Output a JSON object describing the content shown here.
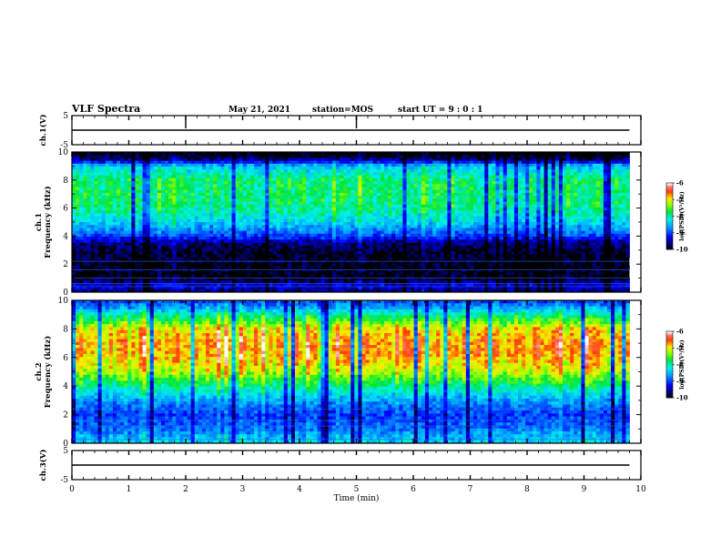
{
  "header": {
    "title": "VLF Spectra",
    "date": "May 21, 2021",
    "station": "station=MOS",
    "start": "start UT =  9 : 0 : 1"
  },
  "chart_data": [
    {
      "type": "line",
      "panel": "ch1-waveform",
      "ylabel": "ch.1(V)",
      "xlim": [
        0,
        10
      ],
      "ylim": [
        -5,
        5
      ],
      "yticks": [
        -5,
        5
      ],
      "series": [
        {
          "x": [
            0,
            9.8
          ],
          "y": [
            0,
            0
          ]
        }
      ]
    },
    {
      "type": "heatmap",
      "panel": "ch1-spectrogram",
      "ylabel": "ch.1\nFrequency (kHz)",
      "xlim": [
        0,
        10
      ],
      "ylim": [
        0,
        10
      ],
      "yticks": [
        0,
        2,
        4,
        6,
        8,
        10
      ],
      "data_end_min": 9.8,
      "colorbar": {
        "label": "log(PSD)(V²/Hz)",
        "range": [
          -10,
          -6
        ],
        "ticks": [
          -6,
          -7,
          -8,
          -9,
          -10
        ]
      },
      "profile": {
        "freq_khz": [
          0,
          0.5,
          1,
          2,
          3,
          3.5,
          4,
          5,
          6,
          7,
          8,
          9,
          9.3,
          9.6,
          10
        ],
        "log_psd": [
          -9.6,
          -9.3,
          -9.9,
          -9.9,
          -9.8,
          -9.6,
          -9.0,
          -8.3,
          -7.9,
          -7.8,
          -7.8,
          -8.4,
          -9.2,
          -9.8,
          -10
        ]
      }
    },
    {
      "type": "heatmap",
      "panel": "ch2-spectrogram",
      "ylabel": "ch.2\nFrequency (kHz)",
      "xlim": [
        0,
        10
      ],
      "ylim": [
        0,
        10
      ],
      "yticks": [
        0,
        2,
        4,
        6,
        8,
        10
      ],
      "data_end_min": 9.8,
      "colorbar": {
        "label": "log(PSD)(V²/Hz)",
        "range": [
          -10,
          -6
        ],
        "ticks": [
          -6,
          -7,
          -8,
          -9,
          -10
        ]
      },
      "profile": {
        "freq_khz": [
          0,
          0.5,
          1,
          2,
          3,
          4,
          5,
          6,
          7,
          8,
          8.5,
          9,
          9.5,
          10
        ],
        "log_psd": [
          -8.3,
          -8.5,
          -8.8,
          -9.0,
          -8.6,
          -7.9,
          -7.2,
          -6.8,
          -6.7,
          -7.0,
          -7.5,
          -8.0,
          -8.6,
          -9.0
        ]
      }
    },
    {
      "type": "line",
      "panel": "ch3-waveform",
      "ylabel": "ch.3(V)",
      "xlabel": "Time  (min)",
      "xlim": [
        0,
        10
      ],
      "ylim": [
        -5,
        5
      ],
      "yticks": [
        -5,
        5
      ],
      "xticks": [
        0,
        1,
        2,
        3,
        4,
        5,
        6,
        7,
        8,
        9,
        10
      ],
      "series": [
        {
          "x": [
            0,
            9.8
          ],
          "y": [
            0,
            0
          ]
        }
      ]
    }
  ]
}
